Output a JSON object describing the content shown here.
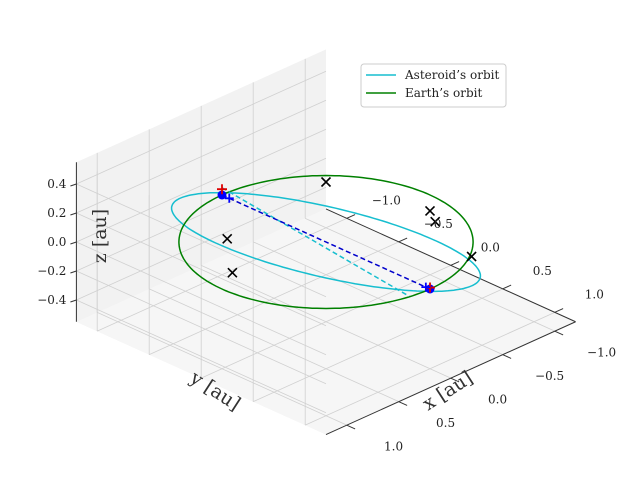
{
  "chart_data": {
    "type": "scatter",
    "projection": "3d",
    "xlabel": "x [au]",
    "ylabel": "y [au]",
    "zlabel": "z [au]",
    "xlim": [
      -1.2,
      1.2
    ],
    "ylim": [
      -1.2,
      1.2
    ],
    "zlim": [
      -0.55,
      0.55
    ],
    "x_ticks": [
      -1.0,
      -0.5,
      0.0,
      0.5,
      1.0
    ],
    "x_tick_labels": [
      "−1.0",
      "−0.5",
      "0.0",
      "0.5",
      "1.0"
    ],
    "y_ticks": [
      1.0,
      0.5,
      0.0,
      -0.5,
      -1.0
    ],
    "y_tick_labels": [
      "1.0",
      "0.5",
      "0.0",
      "−0.5",
      "−1.0"
    ],
    "z_ticks": [
      0.4,
      0.2,
      0.0,
      -0.2,
      -0.4
    ],
    "z_tick_labels": [
      "0.4",
      "0.2",
      "0.0",
      "−0.2",
      "−0.4"
    ],
    "grid": true,
    "legend_position": "top-right",
    "series": [
      {
        "name": "Asteroid's orbit",
        "legend_label": "Asteroid’s orbit",
        "kind": "ellipse",
        "color": "#17becf",
        "semi_major": 1.05,
        "semi_minor": 1.05,
        "inclination_amplitude": 0.33
      },
      {
        "name": "Earth's orbit",
        "legend_label": "Earth’s orbit",
        "kind": "circle",
        "color": "#008000",
        "radius": 1.0,
        "inclination_amplitude": 0.0
      }
    ],
    "line_of_nodes": {
      "color": "#0000cc",
      "style": "dashed",
      "from": [
        -1.0,
        0.0,
        0.0
      ],
      "to": [
        1.0,
        0.0,
        0.0
      ]
    },
    "asteroid_chord": {
      "color": "#17becf",
      "style": "dashed",
      "from": [
        -1.0,
        0.0,
        0.05
      ],
      "to": [
        0.9,
        0.1,
        -0.05
      ]
    },
    "node_points": {
      "color": "#0000ff",
      "marker": "circle",
      "points": [
        [
          -1.0,
          0.0,
          0.0
        ],
        [
          1.0,
          0.0,
          0.0
        ]
      ]
    },
    "red_markers": {
      "color": "#dd0000",
      "marker": "plus",
      "points": [
        [
          -1.0,
          0.0,
          0.04
        ],
        [
          1.0,
          0.0,
          0.01
        ]
      ]
    },
    "blue_markers": {
      "color": "#0000ff",
      "marker": "plus",
      "points": [
        [
          -0.93,
          0.0,
          0.0
        ],
        [
          0.96,
          0.0,
          0.0
        ]
      ]
    },
    "black_markers": {
      "color": "#000000",
      "marker": "x",
      "points": [
        [
          0.0,
          0.95,
          0.33
        ],
        [
          0.0,
          0.9,
          0.08
        ],
        [
          -0.7,
          -0.7,
          -0.04
        ],
        [
          0.0,
          -1.0,
          -0.11
        ],
        [
          0.0,
          -1.05,
          -0.2
        ],
        [
          0.7,
          -0.7,
          -0.1
        ]
      ]
    }
  },
  "legend": {
    "asteroid_label": "Asteroid’s orbit",
    "earth_label": "Earth’s orbit",
    "asteroid_color": "#17becf",
    "earth_color": "#008000"
  }
}
